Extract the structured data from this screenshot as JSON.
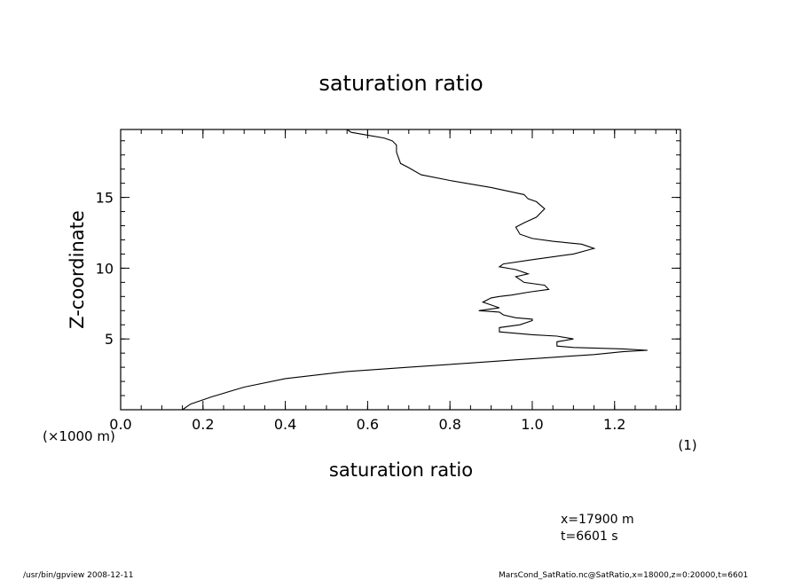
{
  "chart_data": {
    "type": "line",
    "title": "saturation ratio",
    "xlabel": "saturation ratio",
    "xunit": "(1)",
    "ylabel": "Z-coordinate",
    "yunit": "(×1000 m)",
    "xlim": [
      0.0,
      1.36
    ],
    "ylim": [
      0,
      19.8
    ],
    "xticks": [
      {
        "value": 0.0,
        "label": "0.0"
      },
      {
        "value": 0.2,
        "label": "0.2"
      },
      {
        "value": 0.4,
        "label": "0.4"
      },
      {
        "value": 0.6,
        "label": "0.6"
      },
      {
        "value": 0.8,
        "label": "0.8"
      },
      {
        "value": 1.0,
        "label": "1.0"
      },
      {
        "value": 1.2,
        "label": "1.2"
      }
    ],
    "yticks": [
      {
        "value": 5,
        "label": "5"
      },
      {
        "value": 10,
        "label": "10"
      },
      {
        "value": 15,
        "label": "15"
      }
    ],
    "x_minor_step": 0.05,
    "y_minor_step": 1,
    "series": [
      {
        "x": [
          0.15,
          0.17,
          0.22,
          0.3,
          0.4,
          0.55,
          0.7,
          0.85,
          0.95,
          1.05,
          1.15,
          1.22,
          1.28,
          1.22,
          1.1,
          1.06,
          1.06,
          1.1,
          1.06,
          1.0,
          0.96,
          0.92,
          0.92,
          0.97,
          1.0,
          1.0,
          0.96,
          0.93,
          0.92,
          0.87,
          0.92,
          0.9,
          0.88,
          0.9,
          0.92,
          0.95,
          0.99,
          1.04,
          1.03,
          0.98,
          0.97,
          0.96,
          0.99,
          0.97,
          0.96,
          0.92,
          0.93,
          1.0,
          1.1,
          1.15,
          1.12,
          1.05,
          1.0,
          0.97,
          0.96,
          0.98,
          1.01,
          1.03,
          1.01,
          0.99,
          0.98,
          0.9,
          0.8,
          0.73,
          0.7,
          0.68,
          0.67,
          0.67,
          0.67,
          0.66,
          0.64,
          0.6,
          0.56,
          0.55
        ],
        "y": [
          0.0,
          0.4,
          0.9,
          1.6,
          2.2,
          2.7,
          3.0,
          3.3,
          3.5,
          3.7,
          3.9,
          4.1,
          4.2,
          4.3,
          4.4,
          4.5,
          4.8,
          5.0,
          5.2,
          5.3,
          5.4,
          5.5,
          5.8,
          6.0,
          6.3,
          6.4,
          6.5,
          6.7,
          6.9,
          7.0,
          7.2,
          7.4,
          7.6,
          7.9,
          8.0,
          8.1,
          8.3,
          8.5,
          8.8,
          9.0,
          9.2,
          9.4,
          9.6,
          9.8,
          9.9,
          10.1,
          10.3,
          10.6,
          11.0,
          11.4,
          11.7,
          11.9,
          12.1,
          12.4,
          12.9,
          13.2,
          13.6,
          14.2,
          14.7,
          14.9,
          15.2,
          15.7,
          16.2,
          16.6,
          17.1,
          17.4,
          18.2,
          18.6,
          18.7,
          19.0,
          19.2,
          19.4,
          19.6,
          19.8
        ]
      }
    ]
  },
  "annotations": {
    "x_position": "x=17900  m",
    "time": "t=6601  s"
  },
  "footer": {
    "left": "/usr/bin/gpview   2008-12-11",
    "right": "MarsCond_SatRatio.nc@SatRatio,x=18000,z=0:20000,t=6601"
  }
}
